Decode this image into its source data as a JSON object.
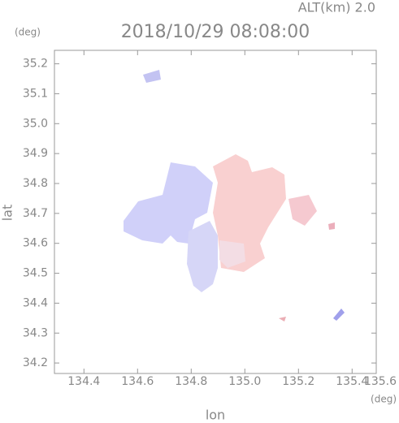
{
  "chart_data": {
    "type": "field",
    "title": "2018/10/29 08:08:00",
    "annotation": "ALT(km) 2.0",
    "x_label": "lon",
    "y_label": "lat",
    "x_unit": "(deg)",
    "y_unit": "(deg)",
    "xlim": [
      134.29,
      135.49
    ],
    "ylim": [
      34.165,
      35.245
    ],
    "xticks": [
      134.4,
      134.6,
      134.8,
      {
        "value": 135.0,
        "label": "135.0"
      },
      135.2,
      135.4,
      135.6
    ],
    "yticks": [
      34.2,
      34.3,
      34.4,
      34.5,
      34.6,
      34.7,
      34.8,
      34.9,
      {
        "value": 35.0,
        "label": "35.0"
      },
      35.1,
      35.2
    ]
  }
}
